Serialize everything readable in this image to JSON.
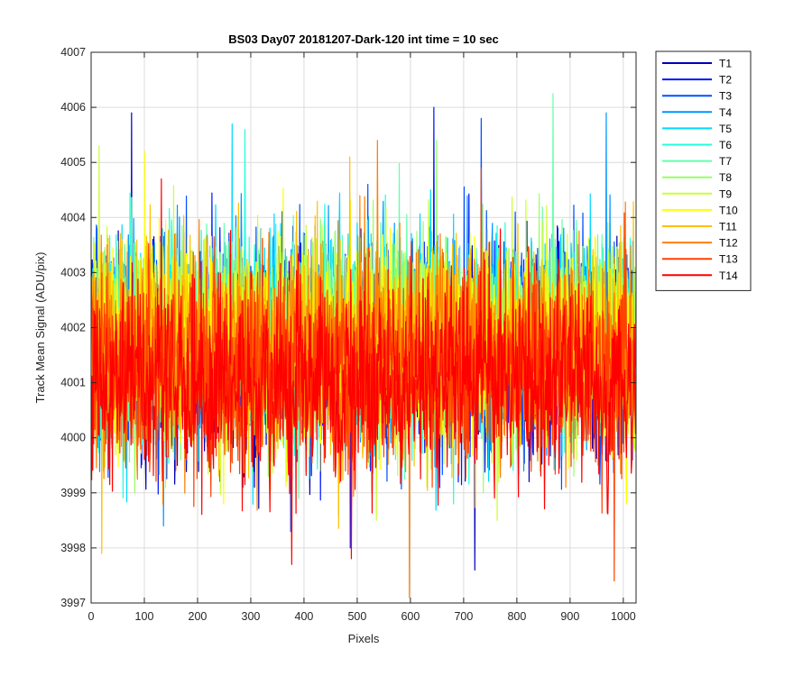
{
  "chart_data": {
    "type": "line",
    "title": "BS03 Day07 20181207-Dark-120 int time = 10 sec",
    "xlabel": "Pixels",
    "ylabel": "Track Mean Signal (ADU/pix)",
    "xlim": [
      0,
      1024
    ],
    "ylim": [
      3997,
      4007
    ],
    "xticks": [
      0,
      100,
      200,
      300,
      400,
      500,
      600,
      700,
      800,
      900,
      1000
    ],
    "yticks": [
      3997,
      3998,
      3999,
      4000,
      4001,
      4002,
      4003,
      4004,
      4005,
      4006,
      4007
    ],
    "grid": true,
    "legend_position": "outside-top-right",
    "n_points_per_series": 1024,
    "series": [
      {
        "name": "T1",
        "color": "#0000b8",
        "mean": 4001.55,
        "min": 3997.6,
        "max": 4005.9
      },
      {
        "name": "T2",
        "color": "#0014ff",
        "mean": 4001.6,
        "min": 3998.0,
        "max": 4006.0
      },
      {
        "name": "T3",
        "color": "#0050ff",
        "mean": 4001.7,
        "min": 3998.3,
        "max": 4005.8
      },
      {
        "name": "T4",
        "color": "#0094ff",
        "mean": 4001.8,
        "min": 3998.4,
        "max": 4005.9
      },
      {
        "name": "T5",
        "color": "#00d8ff",
        "mean": 4001.85,
        "min": 3998.6,
        "max": 4005.7
      },
      {
        "name": "T6",
        "color": "#22ffdd",
        "mean": 4001.85,
        "min": 3998.8,
        "max": 4005.6
      },
      {
        "name": "T7",
        "color": "#66ffaa",
        "mean": 4001.85,
        "min": 3998.9,
        "max": 4006.25
      },
      {
        "name": "T8",
        "color": "#99ff66",
        "mean": 4001.8,
        "min": 3999.0,
        "max": 4005.4
      },
      {
        "name": "T9",
        "color": "#ccff33",
        "mean": 4001.75,
        "min": 3998.5,
        "max": 4005.3
      },
      {
        "name": "T10",
        "color": "#ffff00",
        "mean": 4001.7,
        "min": 3998.8,
        "max": 4005.2
      },
      {
        "name": "T11",
        "color": "#ffc000",
        "mean": 4001.6,
        "min": 3997.9,
        "max": 4005.1
      },
      {
        "name": "T12",
        "color": "#ff8000",
        "mean": 4001.45,
        "min": 3997.1,
        "max": 4005.4
      },
      {
        "name": "T13",
        "color": "#ff4000",
        "mean": 4001.2,
        "min": 3997.4,
        "max": 4004.9
      },
      {
        "name": "T14",
        "color": "#ff0000",
        "mean": 4001.0,
        "min": 3997.7,
        "max": 4004.7
      }
    ]
  }
}
